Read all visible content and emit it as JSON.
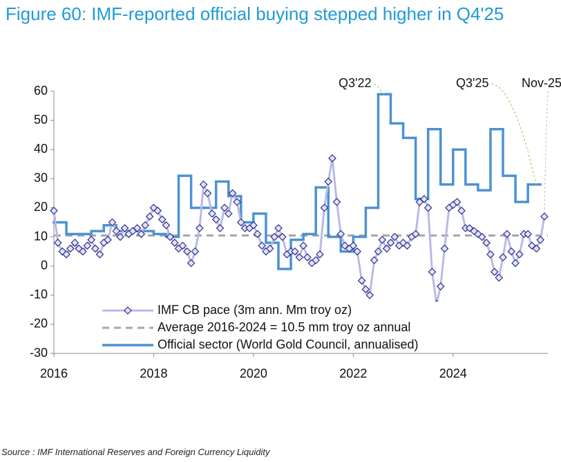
{
  "chart_data": {
    "type": "line",
    "title": "Figure 60: IMF-reported official buying stepped higher in Q4'25",
    "source": "Source : IMF International Reserves and Foreign Currency Liquidity",
    "xlim": [
      2016,
      2025.9
    ],
    "xticks": [
      2016,
      2018,
      2020,
      2022,
      2024
    ],
    "ylim": [
      -30,
      60
    ],
    "yticks": [
      -30,
      -20,
      -10,
      0,
      10,
      20,
      30,
      40,
      50,
      60
    ],
    "series": [
      {
        "name": "IMF CB pace (3m ann. Mm troy oz)",
        "color": "#b9b9e6",
        "marker_color": "#2b2f8f",
        "x": [
          2016,
          2016.08,
          2016.17,
          2016.25,
          2016.33,
          2016.42,
          2016.5,
          2016.58,
          2016.67,
          2016.75,
          2016.83,
          2016.92,
          2017,
          2017.08,
          2017.17,
          2017.25,
          2017.33,
          2017.42,
          2017.5,
          2017.58,
          2017.67,
          2017.75,
          2017.83,
          2017.92,
          2018,
          2018.08,
          2018.17,
          2018.25,
          2018.33,
          2018.42,
          2018.5,
          2018.58,
          2018.67,
          2018.75,
          2018.83,
          2018.92,
          2019,
          2019.08,
          2019.17,
          2019.25,
          2019.33,
          2019.42,
          2019.5,
          2019.58,
          2019.67,
          2019.75,
          2019.83,
          2019.92,
          2020,
          2020.08,
          2020.17,
          2020.25,
          2020.33,
          2020.42,
          2020.5,
          2020.58,
          2020.67,
          2020.75,
          2020.83,
          2020.92,
          2021,
          2021.08,
          2021.17,
          2021.25,
          2021.33,
          2021.42,
          2021.5,
          2021.58,
          2021.67,
          2021.75,
          2021.83,
          2021.92,
          2022,
          2022.08,
          2022.17,
          2022.25,
          2022.33,
          2022.42,
          2022.5,
          2022.58,
          2022.67,
          2022.75,
          2022.83,
          2022.92,
          2023,
          2023.08,
          2023.17,
          2023.25,
          2023.33,
          2023.42,
          2023.5,
          2023.58,
          2023.67,
          2023.75,
          2023.83,
          2023.92,
          2024,
          2024.08,
          2024.17,
          2024.25,
          2024.33,
          2024.42,
          2024.5,
          2024.58,
          2024.67,
          2024.75,
          2024.83,
          2024.92,
          2025,
          2025.08,
          2025.17,
          2025.25,
          2025.33,
          2025.42,
          2025.5,
          2025.58,
          2025.67,
          2025.75,
          2025.83
        ],
        "values": [
          19,
          8,
          5,
          4,
          6,
          8,
          6,
          5,
          7,
          9,
          6,
          4,
          8,
          9,
          15,
          12,
          10,
          13,
          11,
          12,
          13,
          11,
          14,
          17,
          20,
          19,
          16,
          14,
          10,
          8,
          6,
          7,
          5,
          1,
          5,
          13,
          28,
          25,
          18,
          16,
          13,
          20,
          18,
          25,
          22,
          15,
          13,
          13,
          14,
          11,
          7,
          5,
          6,
          10,
          13,
          10,
          4,
          5,
          5,
          3,
          7,
          3,
          1,
          2,
          4,
          20,
          29,
          37,
          22,
          11,
          7,
          6,
          7,
          5,
          -5,
          -8,
          -10,
          2,
          5,
          9,
          6,
          8,
          10,
          7,
          8,
          7,
          10,
          11,
          22,
          23,
          20,
          -2,
          -13,
          -7,
          6,
          20,
          21,
          22,
          19,
          13,
          13,
          12,
          11,
          10,
          8,
          4,
          -2,
          -4,
          3,
          11,
          5,
          1,
          4,
          11,
          11,
          7,
          6,
          9,
          17
        ]
      },
      {
        "name": "Average 2016-2024 = 10.5 mm troy oz annual",
        "color": "#a6a6a6",
        "value": 10.5
      },
      {
        "name": "Official sector (World Gold Council, annualised)",
        "color": "#4b92d2",
        "step": true,
        "x": [
          2016,
          2016.25,
          2016.5,
          2016.75,
          2017,
          2017.25,
          2017.5,
          2017.75,
          2018,
          2018.25,
          2018.5,
          2018.75,
          2019,
          2019.25,
          2019.5,
          2019.75,
          2020,
          2020.25,
          2020.5,
          2020.75,
          2021,
          2021.25,
          2021.5,
          2021.75,
          2022,
          2022.25,
          2022.5,
          2022.75,
          2023,
          2023.25,
          2023.5,
          2023.75,
          2024,
          2024.25,
          2024.5,
          2024.75,
          2025,
          2025.25,
          2025.5
        ],
        "values": [
          15,
          11,
          11,
          12,
          14,
          12,
          12,
          12,
          11,
          10,
          31,
          20,
          20,
          29,
          24,
          15,
          18,
          8,
          -1,
          9,
          11,
          27,
          10,
          5,
          10,
          20,
          59,
          49,
          44,
          23,
          47,
          28,
          40,
          28,
          26,
          47,
          31,
          22,
          28
        ]
      }
    ],
    "annotations": [
      "Q3'22",
      "Q3'25",
      "Nov-25"
    ]
  }
}
